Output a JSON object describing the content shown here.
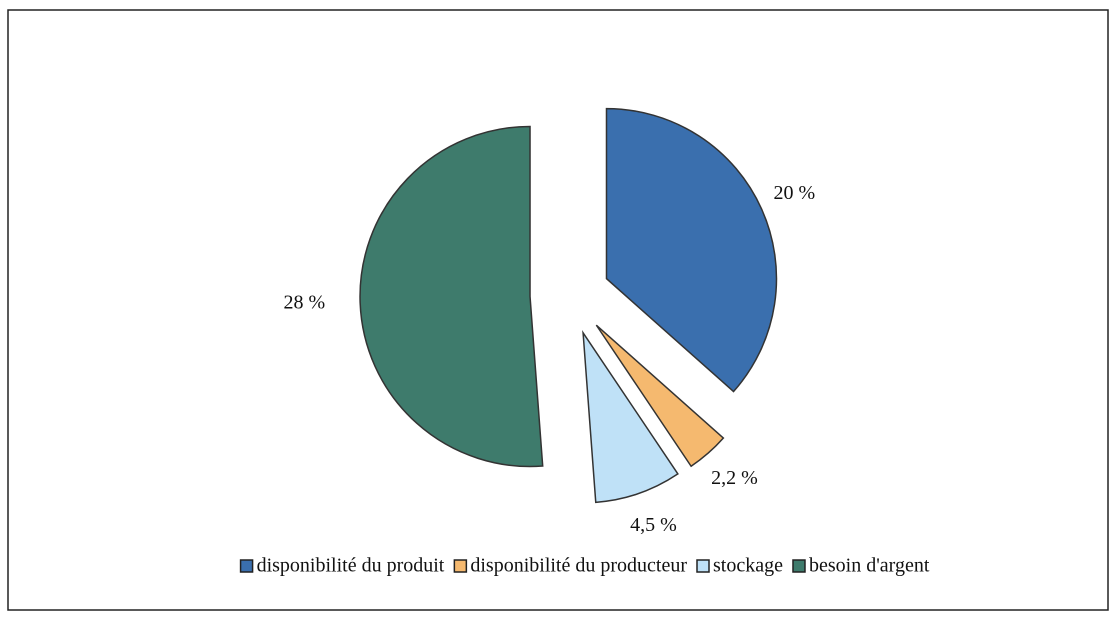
{
  "chart_data": {
    "type": "pie",
    "categories": [
      "disponibilité du produit",
      "disponibilité du producteur",
      "stockage",
      "besoin d'argent"
    ],
    "values": [
      20,
      2.2,
      4.5,
      28
    ],
    "value_labels": [
      "20 %",
      "2,2 %",
      "4,5 %",
      "28 %"
    ],
    "colors": [
      "#3a6fae",
      "#f5b96f",
      "#bfe1f7",
      "#3e7b6c"
    ],
    "legend": "bottom"
  }
}
